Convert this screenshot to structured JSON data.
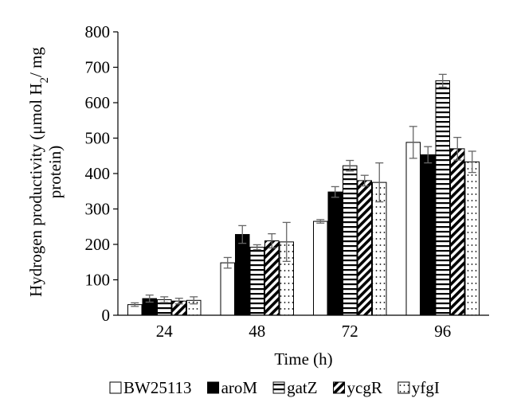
{
  "chart_data": {
    "type": "bar",
    "xlabel": "Time (h)",
    "ylabel_lines": [
      "Hydrogen productivity (μmol H",
      "/ mg",
      "protein)"
    ],
    "ylabel_subscript": "2",
    "categories": [
      "24",
      "48",
      "72",
      "96"
    ],
    "ylim": [
      0,
      800
    ],
    "yticks": [
      "0",
      "100",
      "200",
      "300",
      "400",
      "500",
      "600",
      "700",
      "800"
    ],
    "grid": false,
    "legend_position": "bottom",
    "series": [
      {
        "name": "BW25113",
        "pattern": "open",
        "values": [
          30,
          148,
          265,
          488
        ],
        "errors": [
          5,
          15,
          5,
          45
        ]
      },
      {
        "name": "aroM",
        "pattern": "solid",
        "values": [
          47,
          228,
          348,
          453
        ],
        "errors": [
          10,
          25,
          15,
          23
        ]
      },
      {
        "name": "gatZ",
        "pattern": "horizontal",
        "values": [
          44,
          192,
          422,
          662
        ],
        "errors": [
          8,
          7,
          15,
          18
        ]
      },
      {
        "name": "ycgR",
        "pattern": "diagonal",
        "values": [
          40,
          210,
          380,
          470
        ],
        "errors": [
          8,
          20,
          15,
          32
        ]
      },
      {
        "name": "yfgI",
        "pattern": "dotted",
        "values": [
          42,
          207,
          375,
          433
        ],
        "errors": [
          10,
          55,
          55,
          30
        ]
      }
    ]
  }
}
